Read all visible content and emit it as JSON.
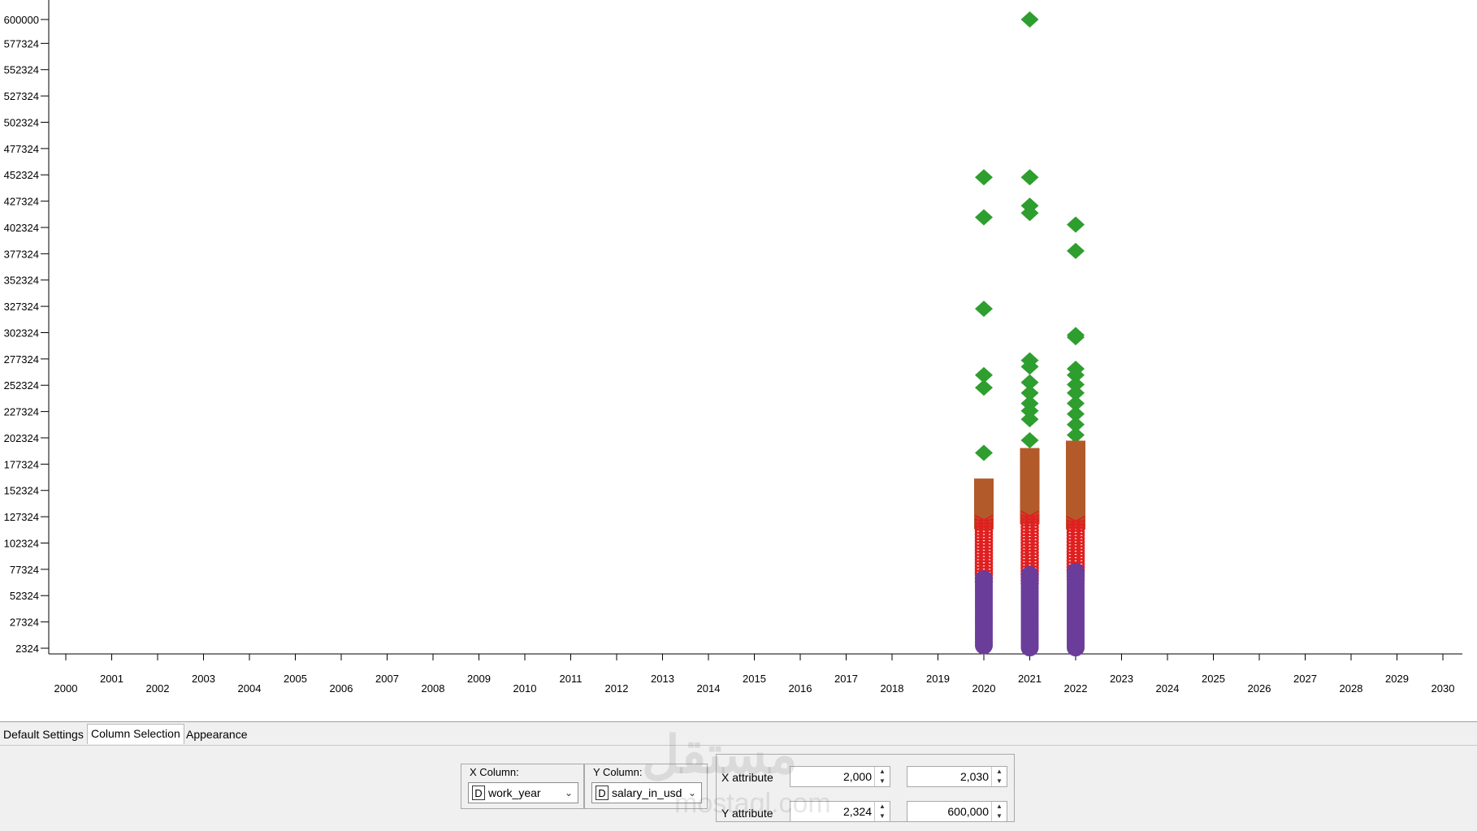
{
  "chart_data": {
    "type": "scatter",
    "x_ticks": [
      "2000",
      "2001",
      "2002",
      "2003",
      "2004",
      "2005",
      "2006",
      "2007",
      "2008",
      "2009",
      "2010",
      "2011",
      "2012",
      "2013",
      "2014",
      "2015",
      "2016",
      "2017",
      "2018",
      "2019",
      "2020",
      "2021",
      "2022",
      "2023",
      "2024",
      "2025",
      "2026",
      "2027",
      "2028",
      "2029",
      "2030"
    ],
    "y_ticks": [
      "2324",
      "27324",
      "52324",
      "77324",
      "102324",
      "127324",
      "152324",
      "177324",
      "202324",
      "227324",
      "252324",
      "277324",
      "302324",
      "327324",
      "352324",
      "377324",
      "402324",
      "427324",
      "452324",
      "477324",
      "502324",
      "527324",
      "552324",
      "577324",
      "600000"
    ],
    "xlim": [
      2000,
      2030
    ],
    "ylim": [
      2324,
      600000
    ],
    "colors": {
      "top": "#2e9e2e",
      "upper": "#b35a2a",
      "middle": "#e02020",
      "bottom": "#6b3d9a"
    },
    "series": [
      {
        "color_key": "top",
        "marker": "diamond",
        "points": [
          [
            2020,
            450000
          ],
          [
            2020,
            412000
          ],
          [
            2020,
            325000
          ],
          [
            2020,
            262000
          ],
          [
            2020,
            250000
          ],
          [
            2020,
            188000
          ],
          [
            2021,
            600000
          ],
          [
            2021,
            450000
          ],
          [
            2021,
            423000
          ],
          [
            2021,
            416000
          ],
          [
            2021,
            276000
          ],
          [
            2021,
            270000
          ],
          [
            2021,
            255000
          ],
          [
            2021,
            245000
          ],
          [
            2021,
            235000
          ],
          [
            2021,
            228000
          ],
          [
            2021,
            220000
          ],
          [
            2021,
            200000
          ],
          [
            2022,
            405000
          ],
          [
            2022,
            380000
          ],
          [
            2022,
            300000
          ],
          [
            2022,
            298000
          ],
          [
            2022,
            268000
          ],
          [
            2022,
            262000
          ],
          [
            2022,
            253000
          ],
          [
            2022,
            245000
          ],
          [
            2022,
            235000
          ],
          [
            2022,
            225000
          ],
          [
            2022,
            215000
          ],
          [
            2022,
            205000
          ],
          [
            2022,
            195000
          ]
        ]
      },
      {
        "color_key": "upper",
        "marker": "square",
        "range_points": [
          [
            2020,
            120000,
            160000
          ],
          [
            2021,
            125000,
            190000
          ],
          [
            2022,
            120000,
            195000
          ]
        ]
      },
      {
        "color_key": "middle",
        "marker": "cross",
        "range_points": [
          [
            2020,
            70000,
            125000
          ],
          [
            2021,
            68000,
            128000
          ],
          [
            2022,
            72000,
            125000
          ]
        ]
      },
      {
        "color_key": "bottom",
        "marker": "circle",
        "range_points": [
          [
            2020,
            5000,
            68000
          ],
          [
            2021,
            3000,
            73000
          ],
          [
            2022,
            3000,
            75000
          ]
        ]
      }
    ]
  },
  "tabs": [
    {
      "label": "Default Settings",
      "active": false
    },
    {
      "label": "Column Selection",
      "active": true
    },
    {
      "label": "Appearance",
      "active": false
    }
  ],
  "x_column": {
    "legend": "X Column:",
    "badge": "D",
    "value": "work_year"
  },
  "y_column": {
    "legend": "Y Column:",
    "badge": "D",
    "value": "salary_in_usd"
  },
  "x_attribute": {
    "label": "X attribute",
    "min": "2,000",
    "max": "2,030"
  },
  "y_attribute": {
    "label": "Y attribute",
    "min": "2,324",
    "max": "600,000"
  },
  "watermark": {
    "main": "مستقل",
    "sub": "mostaql.com"
  }
}
